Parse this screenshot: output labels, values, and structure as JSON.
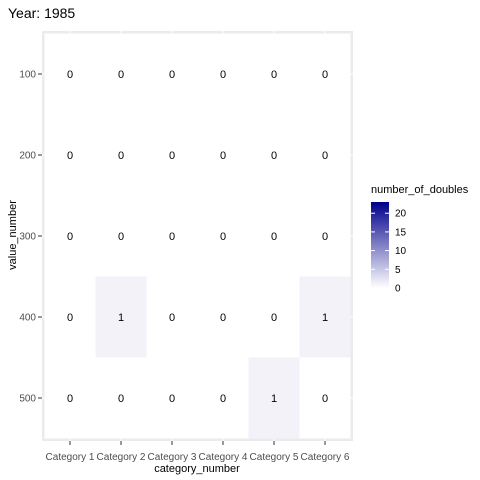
{
  "chart_data": {
    "type": "heatmap",
    "title": "Year: 1985",
    "xlabel": "category_number",
    "ylabel": "value_number",
    "x_categories": [
      "Category 1",
      "Category 2",
      "Category 3",
      "Category 4",
      "Category 5",
      "Category 6"
    ],
    "y_categories": [
      "100",
      "200",
      "300",
      "400",
      "500"
    ],
    "values": [
      [
        0,
        0,
        0,
        0,
        0,
        0
      ],
      [
        0,
        0,
        0,
        0,
        0,
        0
      ],
      [
        0,
        0,
        0,
        0,
        0,
        0
      ],
      [
        0,
        1,
        0,
        0,
        0,
        1
      ],
      [
        0,
        0,
        0,
        0,
        1,
        0
      ]
    ],
    "legend": {
      "title": "number_of_doubles",
      "ticks": [
        0,
        5,
        10,
        15,
        20
      ],
      "range": [
        0,
        23
      ],
      "color_low": "#ffffff",
      "color_high": "#00008b"
    },
    "grid": true,
    "legend_position": "right",
    "panel_background": "#ebebeb"
  }
}
